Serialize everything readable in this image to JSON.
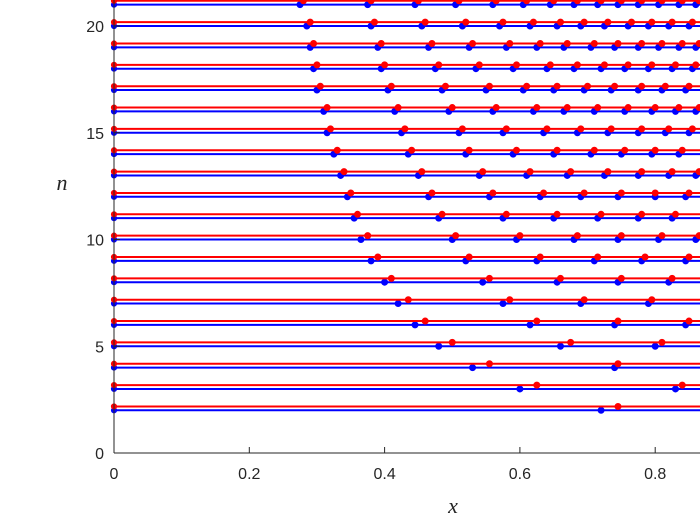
{
  "chart_data": {
    "type": "scatter",
    "xlabel": "x",
    "ylabel": "n",
    "xlim": [
      0,
      0.865
    ],
    "ylim": [
      0,
      21.2
    ],
    "x_ticks": [
      0,
      0.2,
      0.4,
      0.6,
      0.8
    ],
    "x_tick_labels": [
      "0",
      "0.2",
      "0.4",
      "0.6",
      "0.8"
    ],
    "y_ticks": [
      0,
      5,
      10,
      15,
      20
    ],
    "y_tick_labels": [
      "0",
      "5",
      "10",
      "15",
      "20"
    ],
    "grid": false,
    "series": [
      {
        "color": "#0000ff",
        "offset": 0,
        "rows": [
          {
            "n": 2,
            "x": [
              0.72
            ]
          },
          {
            "n": 3,
            "x": [
              0.6,
              0.83
            ]
          },
          {
            "n": 4,
            "x": [
              0.53,
              0.74
            ]
          },
          {
            "n": 5,
            "x": [
              0.48,
              0.66,
              0.8
            ]
          },
          {
            "n": 6,
            "x": [
              0.445,
              0.615,
              0.74,
              0.845
            ]
          },
          {
            "n": 7,
            "x": [
              0.42,
              0.575,
              0.69,
              0.79
            ]
          },
          {
            "n": 8,
            "x": [
              0.4,
              0.545,
              0.655,
              0.745,
              0.82
            ]
          },
          {
            "n": 9,
            "x": [
              0.38,
              0.52,
              0.625,
              0.71,
              0.78,
              0.845
            ]
          },
          {
            "n": 10,
            "x": [
              0.365,
              0.5,
              0.595,
              0.68,
              0.745,
              0.805,
              0.86
            ]
          },
          {
            "n": 11,
            "x": [
              0.355,
              0.48,
              0.575,
              0.65,
              0.715,
              0.775,
              0.825
            ]
          },
          {
            "n": 12,
            "x": [
              0.345,
              0.465,
              0.555,
              0.63,
              0.69,
              0.745,
              0.8,
              0.845
            ]
          },
          {
            "n": 13,
            "x": [
              0.335,
              0.45,
              0.54,
              0.61,
              0.67,
              0.725,
              0.775,
              0.82,
              0.86
            ]
          },
          {
            "n": 14,
            "x": [
              0.325,
              0.435,
              0.52,
              0.59,
              0.65,
              0.705,
              0.75,
              0.795,
              0.835
            ]
          },
          {
            "n": 15,
            "x": [
              0.315,
              0.425,
              0.51,
              0.575,
              0.635,
              0.685,
              0.73,
              0.775,
              0.815,
              0.85
            ]
          },
          {
            "n": 16,
            "x": [
              0.31,
              0.415,
              0.495,
              0.56,
              0.62,
              0.665,
              0.71,
              0.755,
              0.795,
              0.83,
              0.86
            ]
          },
          {
            "n": 17,
            "x": [
              0.3,
              0.405,
              0.485,
              0.55,
              0.605,
              0.65,
              0.695,
              0.735,
              0.775,
              0.81,
              0.845
            ]
          },
          {
            "n": 18,
            "x": [
              0.295,
              0.395,
              0.475,
              0.535,
              0.59,
              0.64,
              0.68,
              0.72,
              0.755,
              0.79,
              0.825,
              0.855
            ]
          },
          {
            "n": 19,
            "x": [
              0.29,
              0.39,
              0.465,
              0.525,
              0.58,
              0.625,
              0.665,
              0.705,
              0.74,
              0.775,
              0.805,
              0.835,
              0.86
            ]
          },
          {
            "n": 20,
            "x": [
              0.285,
              0.38,
              0.455,
              0.515,
              0.57,
              0.615,
              0.655,
              0.69,
              0.725,
              0.76,
              0.79,
              0.82,
              0.85
            ]
          },
          {
            "n": 21,
            "x": [
              0.275,
              0.375,
              0.445,
              0.505,
              0.56,
              0.605,
              0.645,
              0.68,
              0.715,
              0.745,
              0.775,
              0.805,
              0.835,
              0.86
            ]
          }
        ]
      },
      {
        "color": "#ff0000",
        "offset": 0.18,
        "rows": [
          {
            "n": 2,
            "x": [
              0.745
            ]
          },
          {
            "n": 3,
            "x": [
              0.625,
              0.84
            ]
          },
          {
            "n": 4,
            "x": [
              0.555,
              0.745
            ]
          },
          {
            "n": 5,
            "x": [
              0.5,
              0.675,
              0.81
            ]
          },
          {
            "n": 6,
            "x": [
              0.46,
              0.625,
              0.745,
              0.85
            ]
          },
          {
            "n": 7,
            "x": [
              0.435,
              0.585,
              0.695,
              0.795
            ]
          },
          {
            "n": 8,
            "x": [
              0.41,
              0.555,
              0.66,
              0.75,
              0.825
            ]
          },
          {
            "n": 9,
            "x": [
              0.39,
              0.525,
              0.63,
              0.715,
              0.785,
              0.85
            ]
          },
          {
            "n": 10,
            "x": [
              0.375,
              0.505,
              0.6,
              0.685,
              0.75,
              0.81,
              0.865
            ]
          },
          {
            "n": 11,
            "x": [
              0.36,
              0.485,
              0.58,
              0.655,
              0.72,
              0.78,
              0.83
            ]
          },
          {
            "n": 12,
            "x": [
              0.35,
              0.47,
              0.56,
              0.635,
              0.695,
              0.75,
              0.8,
              0.85
            ]
          },
          {
            "n": 13,
            "x": [
              0.34,
              0.455,
              0.545,
              0.615,
              0.675,
              0.73,
              0.78,
              0.825,
              0.865
            ]
          },
          {
            "n": 14,
            "x": [
              0.33,
              0.44,
              0.525,
              0.595,
              0.655,
              0.71,
              0.755,
              0.8,
              0.84
            ]
          },
          {
            "n": 15,
            "x": [
              0.32,
              0.43,
              0.515,
              0.58,
              0.64,
              0.69,
              0.735,
              0.78,
              0.82,
              0.855
            ]
          },
          {
            "n": 16,
            "x": [
              0.315,
              0.42,
              0.5,
              0.565,
              0.625,
              0.67,
              0.715,
              0.76,
              0.8,
              0.835,
              0.865
            ]
          },
          {
            "n": 17,
            "x": [
              0.305,
              0.41,
              0.49,
              0.555,
              0.61,
              0.655,
              0.7,
              0.74,
              0.78,
              0.815,
              0.85
            ]
          },
          {
            "n": 18,
            "x": [
              0.3,
              0.4,
              0.48,
              0.54,
              0.595,
              0.645,
              0.685,
              0.725,
              0.76,
              0.795,
              0.83,
              0.86
            ]
          },
          {
            "n": 19,
            "x": [
              0.295,
              0.395,
              0.47,
              0.53,
              0.585,
              0.63,
              0.67,
              0.71,
              0.745,
              0.78,
              0.81,
              0.84,
              0.865
            ]
          },
          {
            "n": 20,
            "x": [
              0.29,
              0.385,
              0.46,
              0.52,
              0.575,
              0.62,
              0.66,
              0.695,
              0.73,
              0.765,
              0.795,
              0.825,
              0.855
            ]
          },
          {
            "n": 21,
            "x": [
              0.28,
              0.38,
              0.45,
              0.51,
              0.565,
              0.61,
              0.65,
              0.685,
              0.72,
              0.75,
              0.78,
              0.81,
              0.84,
              0.865
            ]
          }
        ]
      }
    ]
  }
}
